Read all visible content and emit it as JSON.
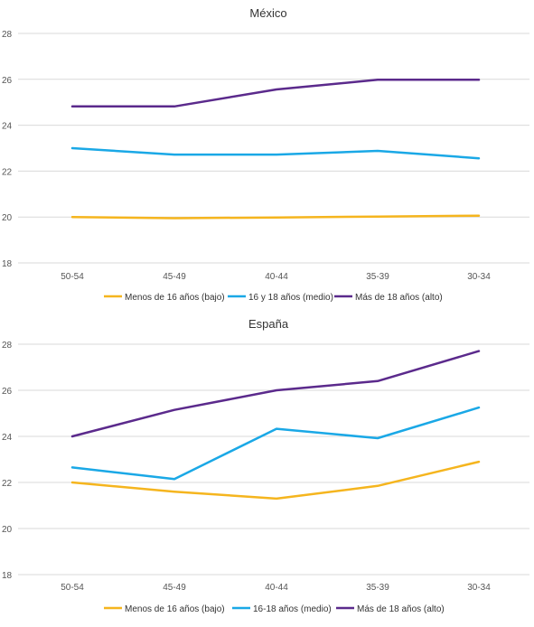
{
  "chart_data": [
    {
      "type": "line",
      "title": "México",
      "categories": [
        "50-54",
        "45-49",
        "40-44",
        "35-39",
        "30-34"
      ],
      "ylim": [
        18,
        28
      ],
      "yticks": [
        18,
        20,
        22,
        24,
        26,
        28
      ],
      "grid": "horizontal",
      "legend_position": "bottom",
      "series": [
        {
          "name": "Menos de 16 años (bajo)",
          "color": "#f5b51e",
          "values": [
            20.0,
            19.95,
            19.98,
            20.02,
            20.06
          ]
        },
        {
          "name": "16 y 18 años (medio)",
          "color": "#1aa8e6",
          "values": [
            23.0,
            22.72,
            22.72,
            22.88,
            22.56
          ]
        },
        {
          "name": "Más de 18 años (alto)",
          "color": "#5b2a8c",
          "values": [
            24.82,
            24.82,
            25.56,
            25.98,
            25.98
          ]
        }
      ]
    },
    {
      "type": "line",
      "title": "España",
      "categories": [
        "50-54",
        "45-49",
        "40-44",
        "35-39",
        "30-34"
      ],
      "ylim": [
        18,
        28
      ],
      "yticks": [
        18,
        20,
        22,
        24,
        26,
        28
      ],
      "grid": "horizontal",
      "legend_position": "bottom",
      "series": [
        {
          "name": "Menos de 16 años (bajo)",
          "color": "#f5b51e",
          "values": [
            22.0,
            21.6,
            21.3,
            21.85,
            22.9
          ]
        },
        {
          "name": "16-18 años (medio)",
          "color": "#1aa8e6",
          "values": [
            22.65,
            22.15,
            24.33,
            23.92,
            25.25
          ]
        },
        {
          "name": "Más de 18 años (alto)",
          "color": "#5b2a8c",
          "values": [
            24.0,
            25.15,
            26.0,
            26.4,
            27.7
          ]
        }
      ]
    }
  ]
}
